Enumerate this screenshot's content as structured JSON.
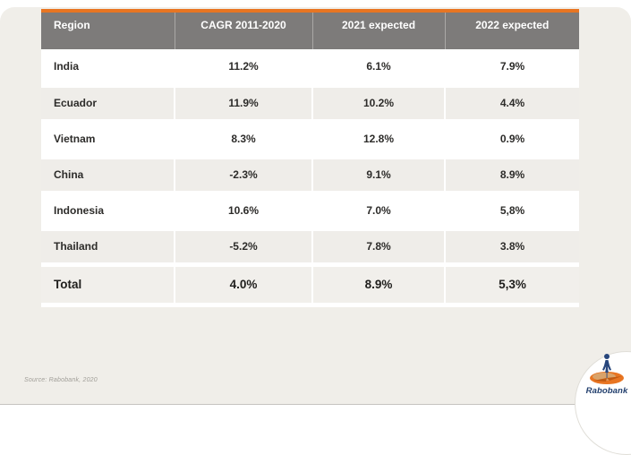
{
  "slide": {
    "accent_color": "#e87522",
    "header_bg": "#7d7b7a",
    "row_alt_bg": "#efede9",
    "background": "#f0eee9"
  },
  "table": {
    "columns": [
      "Region",
      "CAGR 2011-2020",
      "2021 expected",
      "2022 expected"
    ],
    "rows": [
      {
        "region": "India",
        "cagr_2011_2020": "11.2%",
        "expected_2021": "6.1%",
        "expected_2022": "7.9%"
      },
      {
        "region": "Ecuador",
        "cagr_2011_2020": "11.9%",
        "expected_2021": "10.2%",
        "expected_2022": "4.4%"
      },
      {
        "region": "Vietnam",
        "cagr_2011_2020": "8.3%",
        "expected_2021": "12.8%",
        "expected_2022": "0.9%"
      },
      {
        "region": "China",
        "cagr_2011_2020": "-2.3%",
        "expected_2021": "9.1%",
        "expected_2022": "8.9%"
      },
      {
        "region": "Indonesia",
        "cagr_2011_2020": "10.6%",
        "expected_2021": "7.0%",
        "expected_2022": "5,8%"
      },
      {
        "region": "Thailand",
        "cagr_2011_2020": "-5.2%",
        "expected_2021": "7.8%",
        "expected_2022": "3.8%"
      },
      {
        "region": "Total",
        "cagr_2011_2020": "4.0%",
        "expected_2021": "8.9%",
        "expected_2022": "5,3%"
      }
    ]
  },
  "footer": {
    "source": "Source: Rabobank, 2020",
    "logo_text": "Rabobank"
  }
}
